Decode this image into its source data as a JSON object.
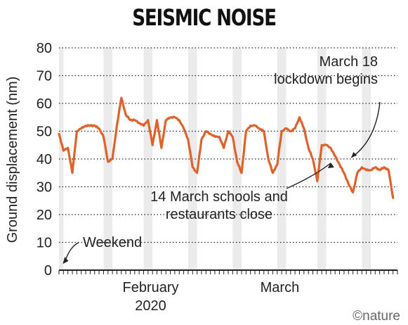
{
  "chart_data": {
    "type": "line",
    "title": "SEISMIC NOISE",
    "ylabel": "Ground displacement (nm)",
    "xlabel": "",
    "ylim": [
      0,
      80
    ],
    "yticks": [
      0,
      10,
      20,
      30,
      40,
      50,
      60,
      70,
      80
    ],
    "xlim": [
      "2020-01-13",
      "2020-03-29"
    ],
    "x_tick_labels": [
      {
        "date": "2020-02-01",
        "lines": [
          "February",
          "2020"
        ]
      },
      {
        "date": "2020-03-01",
        "lines": [
          "March"
        ]
      }
    ],
    "grid": "horizontal dotted",
    "line_color": "#e0622a",
    "weekend_shading_color": "#ebebeb",
    "weekends": [
      [
        "2020-01-13",
        "2020-01-14"
      ],
      [
        "2020-01-23",
        "2020-01-25"
      ],
      [
        "2020-02-01",
        "2020-02-03"
      ],
      [
        "2020-02-11",
        "2020-02-13"
      ],
      [
        "2020-02-21",
        "2020-02-23"
      ],
      [
        "2020-03-02",
        "2020-03-04"
      ],
      [
        "2020-03-11",
        "2020-03-13"
      ],
      [
        "2020-03-21",
        "2020-03-23"
      ]
    ],
    "series": [
      {
        "x": [
          "2020-01-13",
          "2020-01-14",
          "2020-01-15",
          "2020-01-16",
          "2020-01-17",
          "2020-01-18",
          "2020-01-19",
          "2020-01-20",
          "2020-01-21",
          "2020-01-22",
          "2020-01-23",
          "2020-01-24",
          "2020-01-25",
          "2020-01-26",
          "2020-01-27",
          "2020-01-28",
          "2020-01-29",
          "2020-01-30",
          "2020-01-31",
          "2020-02-01",
          "2020-02-02",
          "2020-02-03",
          "2020-02-04",
          "2020-02-05",
          "2020-02-06",
          "2020-02-07",
          "2020-02-08",
          "2020-02-09",
          "2020-02-10",
          "2020-02-11",
          "2020-02-12",
          "2020-02-13",
          "2020-02-14",
          "2020-02-15",
          "2020-02-16",
          "2020-02-17",
          "2020-02-18",
          "2020-02-19",
          "2020-02-20",
          "2020-02-21",
          "2020-02-22",
          "2020-02-23",
          "2020-02-24",
          "2020-02-25",
          "2020-02-26",
          "2020-02-27",
          "2020-02-28",
          "2020-02-29",
          "2020-03-01",
          "2020-03-02",
          "2020-03-03",
          "2020-03-04",
          "2020-03-05",
          "2020-03-06",
          "2020-03-07",
          "2020-03-08",
          "2020-03-09",
          "2020-03-10",
          "2020-03-11",
          "2020-03-12",
          "2020-03-13",
          "2020-03-14",
          "2020-03-15",
          "2020-03-16",
          "2020-03-17",
          "2020-03-18",
          "2020-03-19",
          "2020-03-20",
          "2020-03-21",
          "2020-03-22",
          "2020-03-23",
          "2020-03-24",
          "2020-03-25",
          "2020-03-26",
          "2020-03-27",
          "2020-03-28"
        ],
        "y": [
          49,
          43,
          44,
          35,
          50,
          51,
          52,
          52,
          52,
          51,
          48,
          39,
          40,
          52,
          62,
          56,
          54,
          54,
          53,
          52,
          54,
          45,
          54,
          44,
          54,
          55,
          55,
          54,
          51,
          47,
          37,
          35,
          47,
          50,
          49,
          48,
          48,
          44,
          50,
          48,
          39,
          35,
          50,
          52,
          52,
          51,
          50,
          40,
          35,
          38,
          50,
          51,
          50,
          51,
          55,
          51,
          44,
          40,
          32,
          45,
          45,
          44,
          41,
          38,
          35,
          31,
          28,
          35,
          37,
          36,
          36,
          37,
          36,
          37,
          36,
          26
        ]
      }
    ],
    "annotations": [
      {
        "lines": [
          "March 18",
          "lockdown begins"
        ],
        "points_to": {
          "x": "2020-03-18",
          "y": 40
        }
      },
      {
        "lines": [
          "14 March schools and",
          "restaurants close"
        ],
        "points_to": {
          "x": "2020-03-14",
          "y": 40
        }
      },
      {
        "lines": [
          "Weekend"
        ],
        "points_to": {
          "x": "2020-01-14",
          "y": 2
        }
      }
    ],
    "credit": "©nature"
  }
}
